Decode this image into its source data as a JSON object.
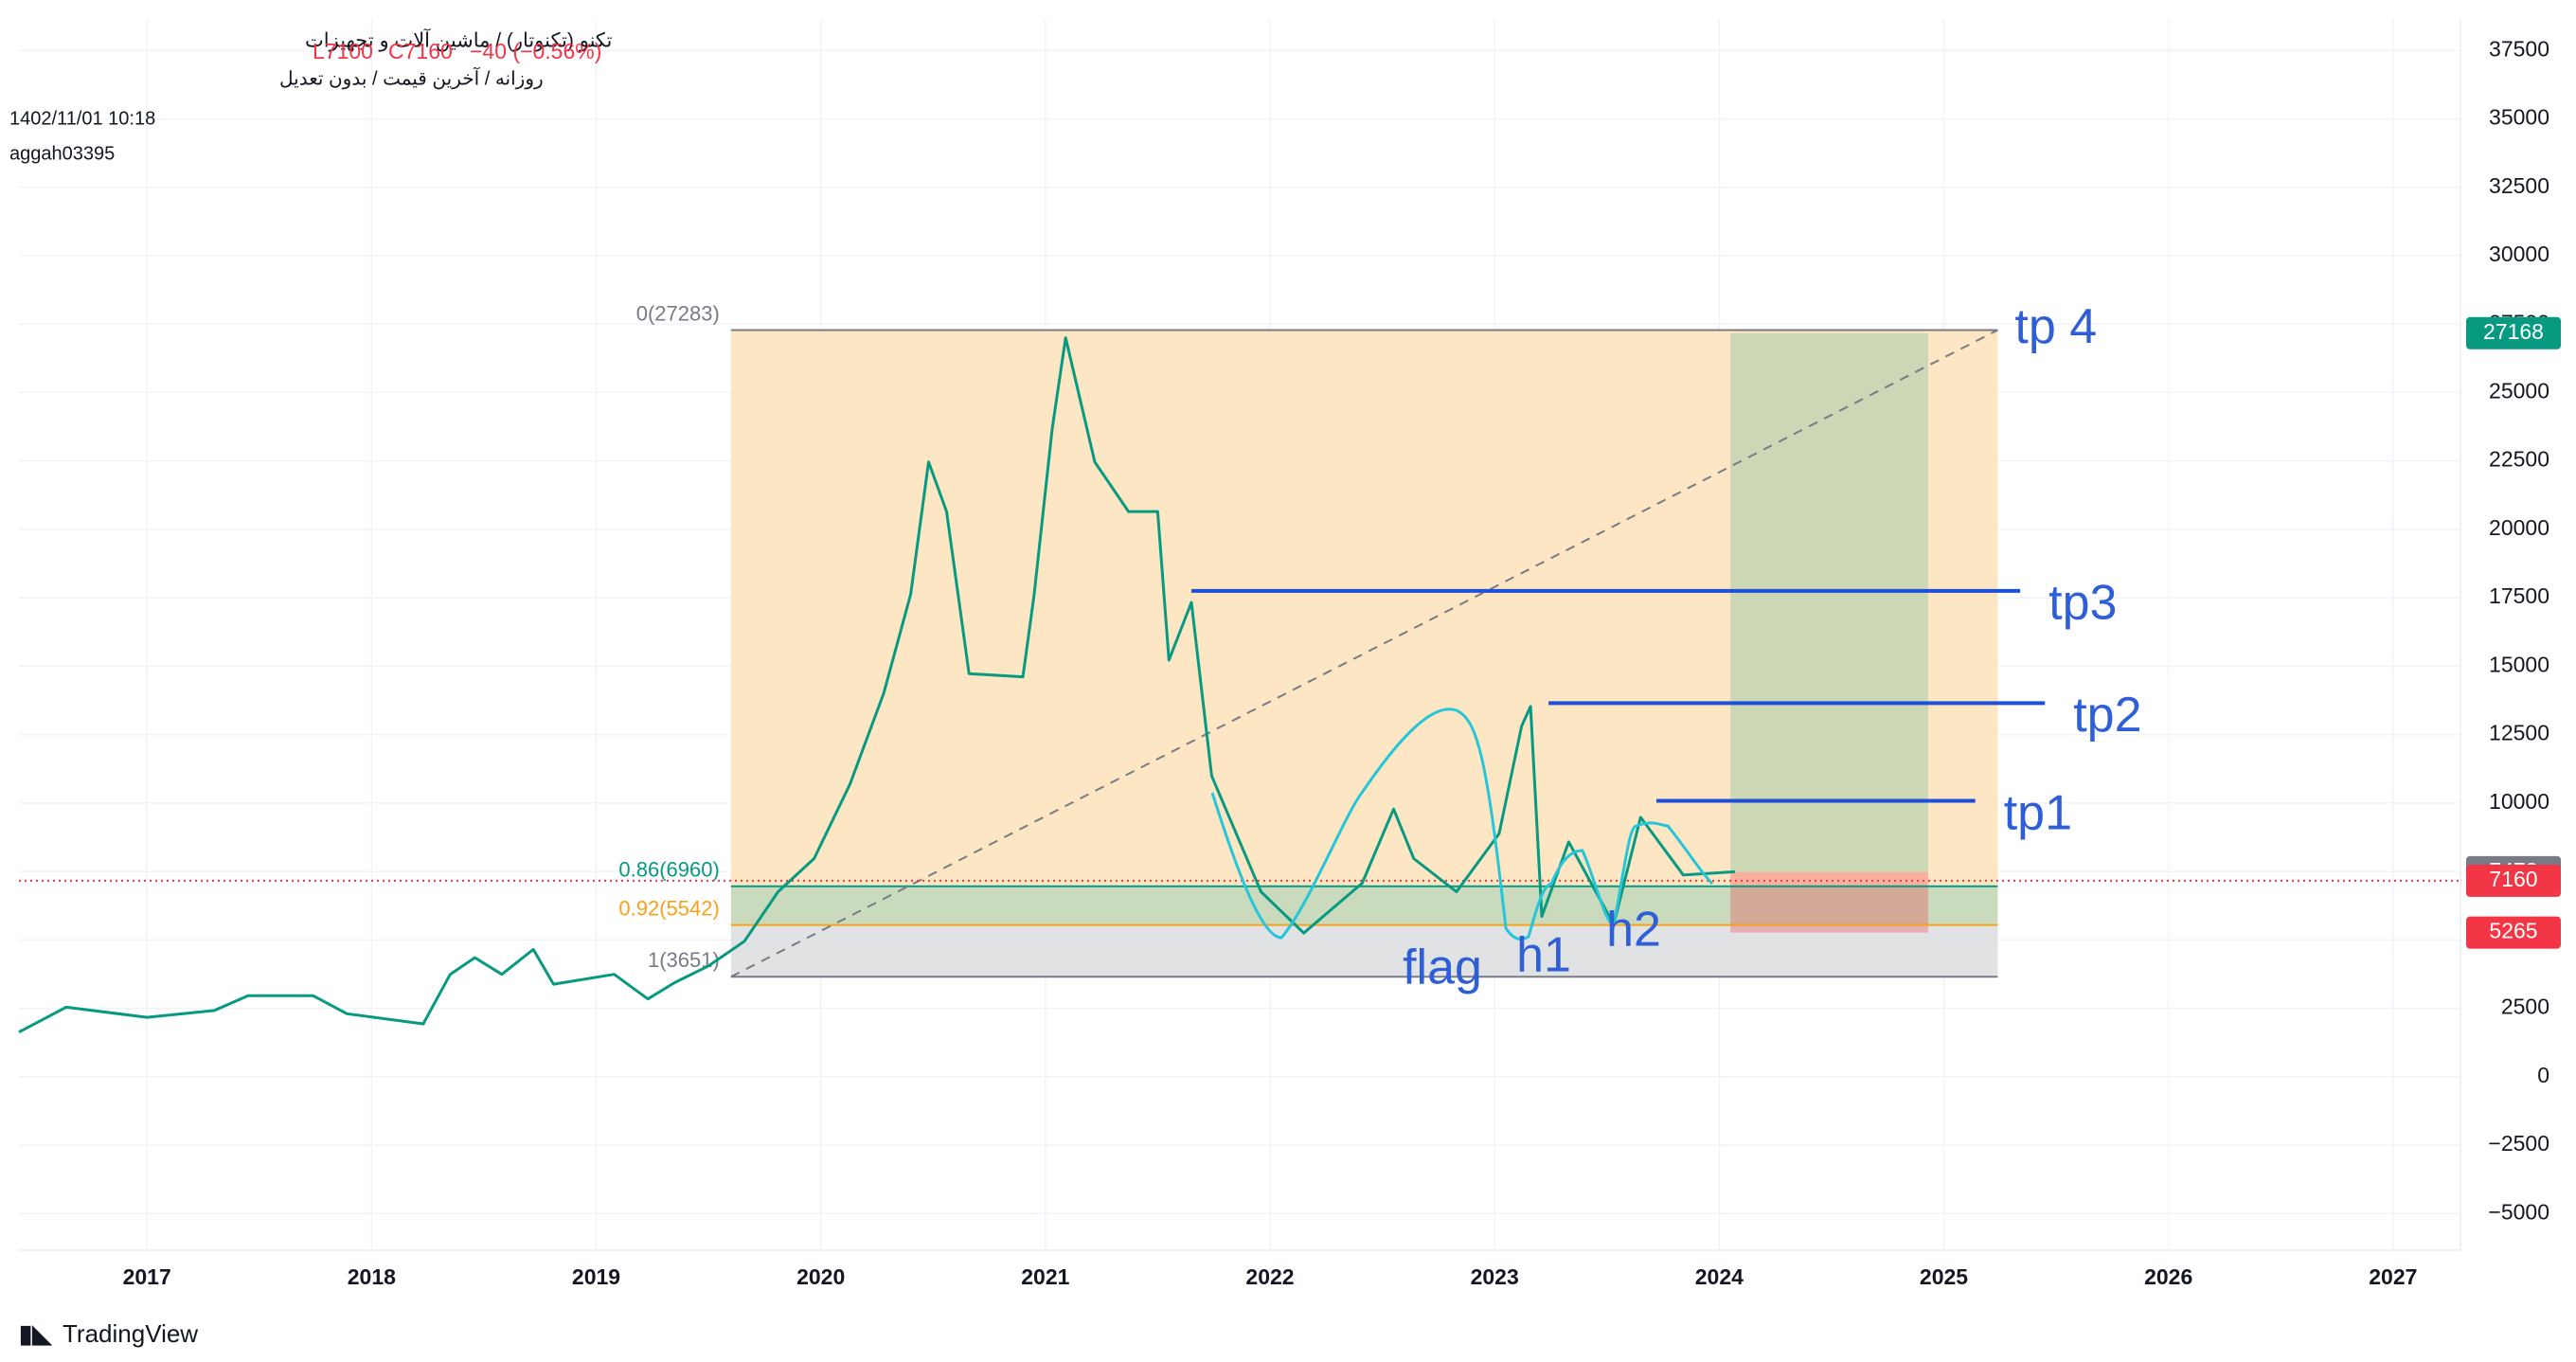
{
  "header": {
    "title": "تکنو (تکنوتار) / ماشین آلات و تجهیزات",
    "subtitle": "روزانه / آخرین قیمت / بدون تعدیل",
    "datetime": "1402/11/01 10:18",
    "author": "aggah03395",
    "low": "L7100",
    "close": "C7160",
    "change": "−40 (−0.56%)"
  },
  "footer": {
    "brand": "TradingView"
  },
  "chart_data": {
    "type": "line",
    "color": "#089981",
    "grid": true,
    "x": [
      2016.43,
      2016.64,
      2017.0,
      2017.3,
      2017.45,
      2017.74,
      2017.89,
      2018.23,
      2018.35,
      2018.46,
      2018.58,
      2018.72,
      2018.81,
      2019.08,
      2019.23,
      2019.35,
      2019.5,
      2019.66,
      2019.81,
      2019.97,
      2020.13,
      2020.28,
      2020.4,
      2020.48,
      2020.56,
      2020.66,
      2020.9,
      2020.95,
      2021.03,
      2021.09,
      2021.22,
      2021.37,
      2021.5,
      2021.55,
      2021.65,
      2021.74,
      2021.96,
      2022.15,
      2022.41,
      2022.55,
      2022.64,
      2022.83,
      2023.02,
      2023.12,
      2023.16,
      2023.21,
      2023.33,
      2023.53,
      2023.65,
      2023.84,
      2024.07
    ],
    "values": [
      1630,
      2540,
      2170,
      2420,
      2960,
      2960,
      2300,
      1930,
      3740,
      4350,
      3740,
      4650,
      3380,
      3740,
      2840,
      3440,
      4050,
      4950,
      6760,
      7970,
      10690,
      14010,
      17630,
      22460,
      20650,
      14730,
      14610,
      17630,
      23670,
      27000,
      22460,
      20650,
      20650,
      15220,
      17330,
      10990,
      6760,
      5250,
      7070,
      9780,
      7970,
      6760,
      8880,
      12800,
      13530,
      5860,
      8580,
      5560,
      9480,
      7370,
      7490
    ],
    "xlim": [
      2016.43,
      2027.3
    ],
    "ylim": [
      -6340,
      38650
    ],
    "xticks": [
      2017,
      2018,
      2019,
      2020,
      2021,
      2022,
      2023,
      2024,
      2025,
      2026,
      2027
    ],
    "yticks": [
      {
        "value": -5000,
        "label": "−5000"
      },
      {
        "value": -2500,
        "label": "−2500"
      },
      0,
      2500,
      5000,
      7500,
      10000,
      12500,
      15000,
      17500,
      20000,
      22500,
      25000,
      27500,
      30000,
      32500,
      35000,
      37500
    ],
    "fibonacci": {
      "x": [
        2019.6,
        2025.24
      ],
      "band_colors": [
        "#fde6c3",
        "#c9dbbc",
        "#e1e2e4"
      ],
      "levels": [
        {
          "value": 27283,
          "label": "0(27283)",
          "color": "#787b86"
        },
        {
          "value": 6960,
          "label": "0.86(6960)",
          "color": "#089981"
        },
        {
          "value": 5542,
          "label": "0.92(5542)",
          "color": "#f7a21b"
        },
        {
          "value": 3651,
          "label": "1(3651)",
          "color": "#787b86"
        }
      ]
    },
    "position": {
      "x": [
        2024.05,
        2024.93
      ],
      "target": 27168,
      "entry": 7473,
      "stop": 5265,
      "target_color": "#089981",
      "entry_color": "#787b86",
      "stop_color": "#f23645"
    },
    "last_price": {
      "value": 7160,
      "color": "#f23645"
    },
    "targets": [
      {
        "label": "tp1",
        "value": 10080,
        "x": [
          2023.72,
          2025.14
        ]
      },
      {
        "label": "tp2",
        "value": 13650,
        "x": [
          2023.24,
          2025.45
        ]
      },
      {
        "label": "tp3",
        "value": 17750,
        "x": [
          2021.65,
          2025.34
        ]
      }
    ],
    "tp4_label": "tp 4",
    "pattern_labels": {
      "flag": "flag",
      "h1": "h1",
      "h2": "h2"
    }
  }
}
